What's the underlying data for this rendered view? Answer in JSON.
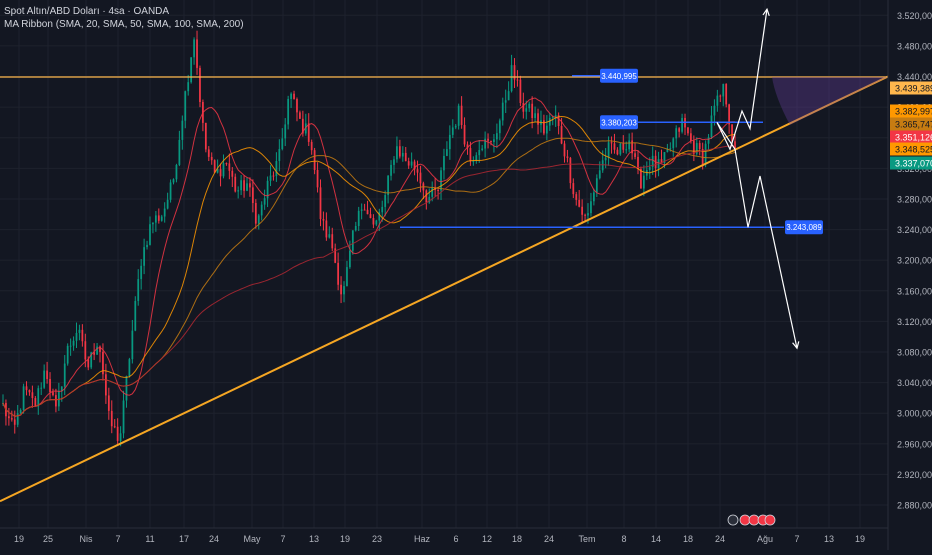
{
  "header": {
    "symbol_line": "Spot Altın/ABD Doları · 4sa · OANDA",
    "indicator_line": "MA Ribbon (SMA, 20, SMA, 50, SMA, 100, SMA, 200)"
  },
  "colors": {
    "background": "#131722",
    "grid": "#1e222d",
    "candle_up": "#089981",
    "candle_down": "#f23645",
    "trendline": "#f5a623",
    "resistance": "#ffb74d",
    "support_levels": "#2962ff",
    "projection": "#ffffff",
    "ma20": "#f23645",
    "ma50": "#ff9800",
    "ma100": "#c77c12",
    "ma200": "#b22833"
  },
  "chart_data": {
    "type": "candlestick",
    "ylim": [
      2850,
      3540
    ],
    "y_ticks": [
      "3.520,000",
      "3.480,000",
      "3.440,000",
      "3.400,000",
      "3.360,000",
      "3.320,000",
      "3.280,000",
      "3.240,000",
      "3.200,000",
      "3.160,000",
      "3.120,000",
      "3.080,000",
      "3.040,000",
      "3.000,000",
      "2.960,000",
      "2.920,000",
      "2.880,000"
    ],
    "y_tick_values": [
      3520,
      3480,
      3440,
      3400,
      3360,
      3320,
      3280,
      3240,
      3200,
      3160,
      3120,
      3080,
      3040,
      3000,
      2960,
      2920,
      2880
    ],
    "x_ticks": [
      "19",
      "25",
      "Nis",
      "7",
      "11",
      "17",
      "24",
      "May",
      "7",
      "13",
      "19",
      "23",
      "Haz",
      "6",
      "12",
      "18",
      "24",
      "Tem",
      "8",
      "14",
      "18",
      "24",
      "Ağu",
      "7",
      "13",
      "19"
    ],
    "price_labels": [
      {
        "text": "3.439,389",
        "value": 3439.389,
        "color": "#ffb74d",
        "text_color": "#131722"
      },
      {
        "text": "3.382,997",
        "value": 3382.997,
        "color": "#ff9800",
        "text_color": "#131722"
      },
      {
        "text": "3.365,747",
        "value": 3365.747,
        "color": "#c77c12",
        "text_color": "#131722"
      },
      {
        "text": "3.351,126",
        "value": 3351.126,
        "color": "#f23645",
        "text_color": "#ffffff"
      },
      {
        "text": "3.348,525",
        "value": 3348.525,
        "color": "#ff9800",
        "text_color": "#131722"
      },
      {
        "text": "3.337,070",
        "value": 3337.07,
        "color": "#089981",
        "text_color": "#ffffff"
      }
    ],
    "level_labels": [
      {
        "text": "3.440,995",
        "value": 3440.995
      },
      {
        "text": "3.380,203",
        "value": 3380.203
      },
      {
        "text": "3.243,089",
        "value": 3243.089
      }
    ],
    "resistance_value": 3439.389,
    "trendline_points": [
      [
        2885,
        0
      ],
      [
        3440,
        1
      ]
    ],
    "projection_up": [
      3380,
      3345,
      3395,
      3372,
      3528
    ],
    "projection_down": [
      3380,
      3345,
      3243,
      3310,
      3085
    ],
    "anchor_path": [
      3010,
      2975,
      3030,
      3010,
      3060,
      3000,
      3080,
      3110,
      3060,
      3100,
      2990,
      2965,
      3085,
      3200,
      3250,
      3260,
      3300,
      3400,
      3495,
      3350,
      3310,
      3330,
      3290,
      3300,
      3250,
      3300,
      3330,
      3420,
      3380,
      3360,
      3250,
      3220,
      3150,
      3230,
      3280,
      3240,
      3280,
      3350,
      3330,
      3320,
      3280,
      3290,
      3360,
      3395,
      3330,
      3355,
      3350,
      3390,
      3450,
      3400,
      3390,
      3370,
      3390,
      3340,
      3280,
      3250,
      3310,
      3345,
      3340,
      3360,
      3300,
      3330,
      3320,
      3350,
      3380,
      3350,
      3335,
      3395,
      3425,
      3337
    ]
  }
}
